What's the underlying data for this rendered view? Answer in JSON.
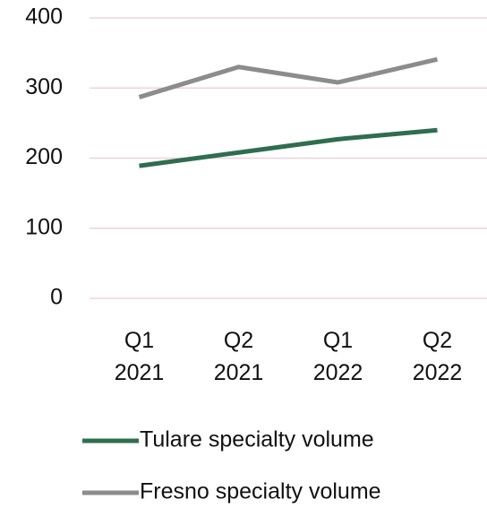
{
  "chart_data": {
    "type": "line",
    "categories": [
      "Q1 2021",
      "Q2 2021",
      "Q1 2022",
      "Q2 2022"
    ],
    "series": [
      {
        "name": "Tulare specialty volume",
        "color": "#2e6e4f",
        "values": [
          189,
          208,
          227,
          240
        ]
      },
      {
        "name": "Fresno specialty volume",
        "color": "#8c8c8c",
        "values": [
          287,
          330,
          308,
          341
        ]
      }
    ],
    "ylim": [
      0,
      400
    ],
    "yticks": [
      0,
      100,
      200,
      300,
      400
    ],
    "grid": true,
    "legend": "bottom"
  }
}
